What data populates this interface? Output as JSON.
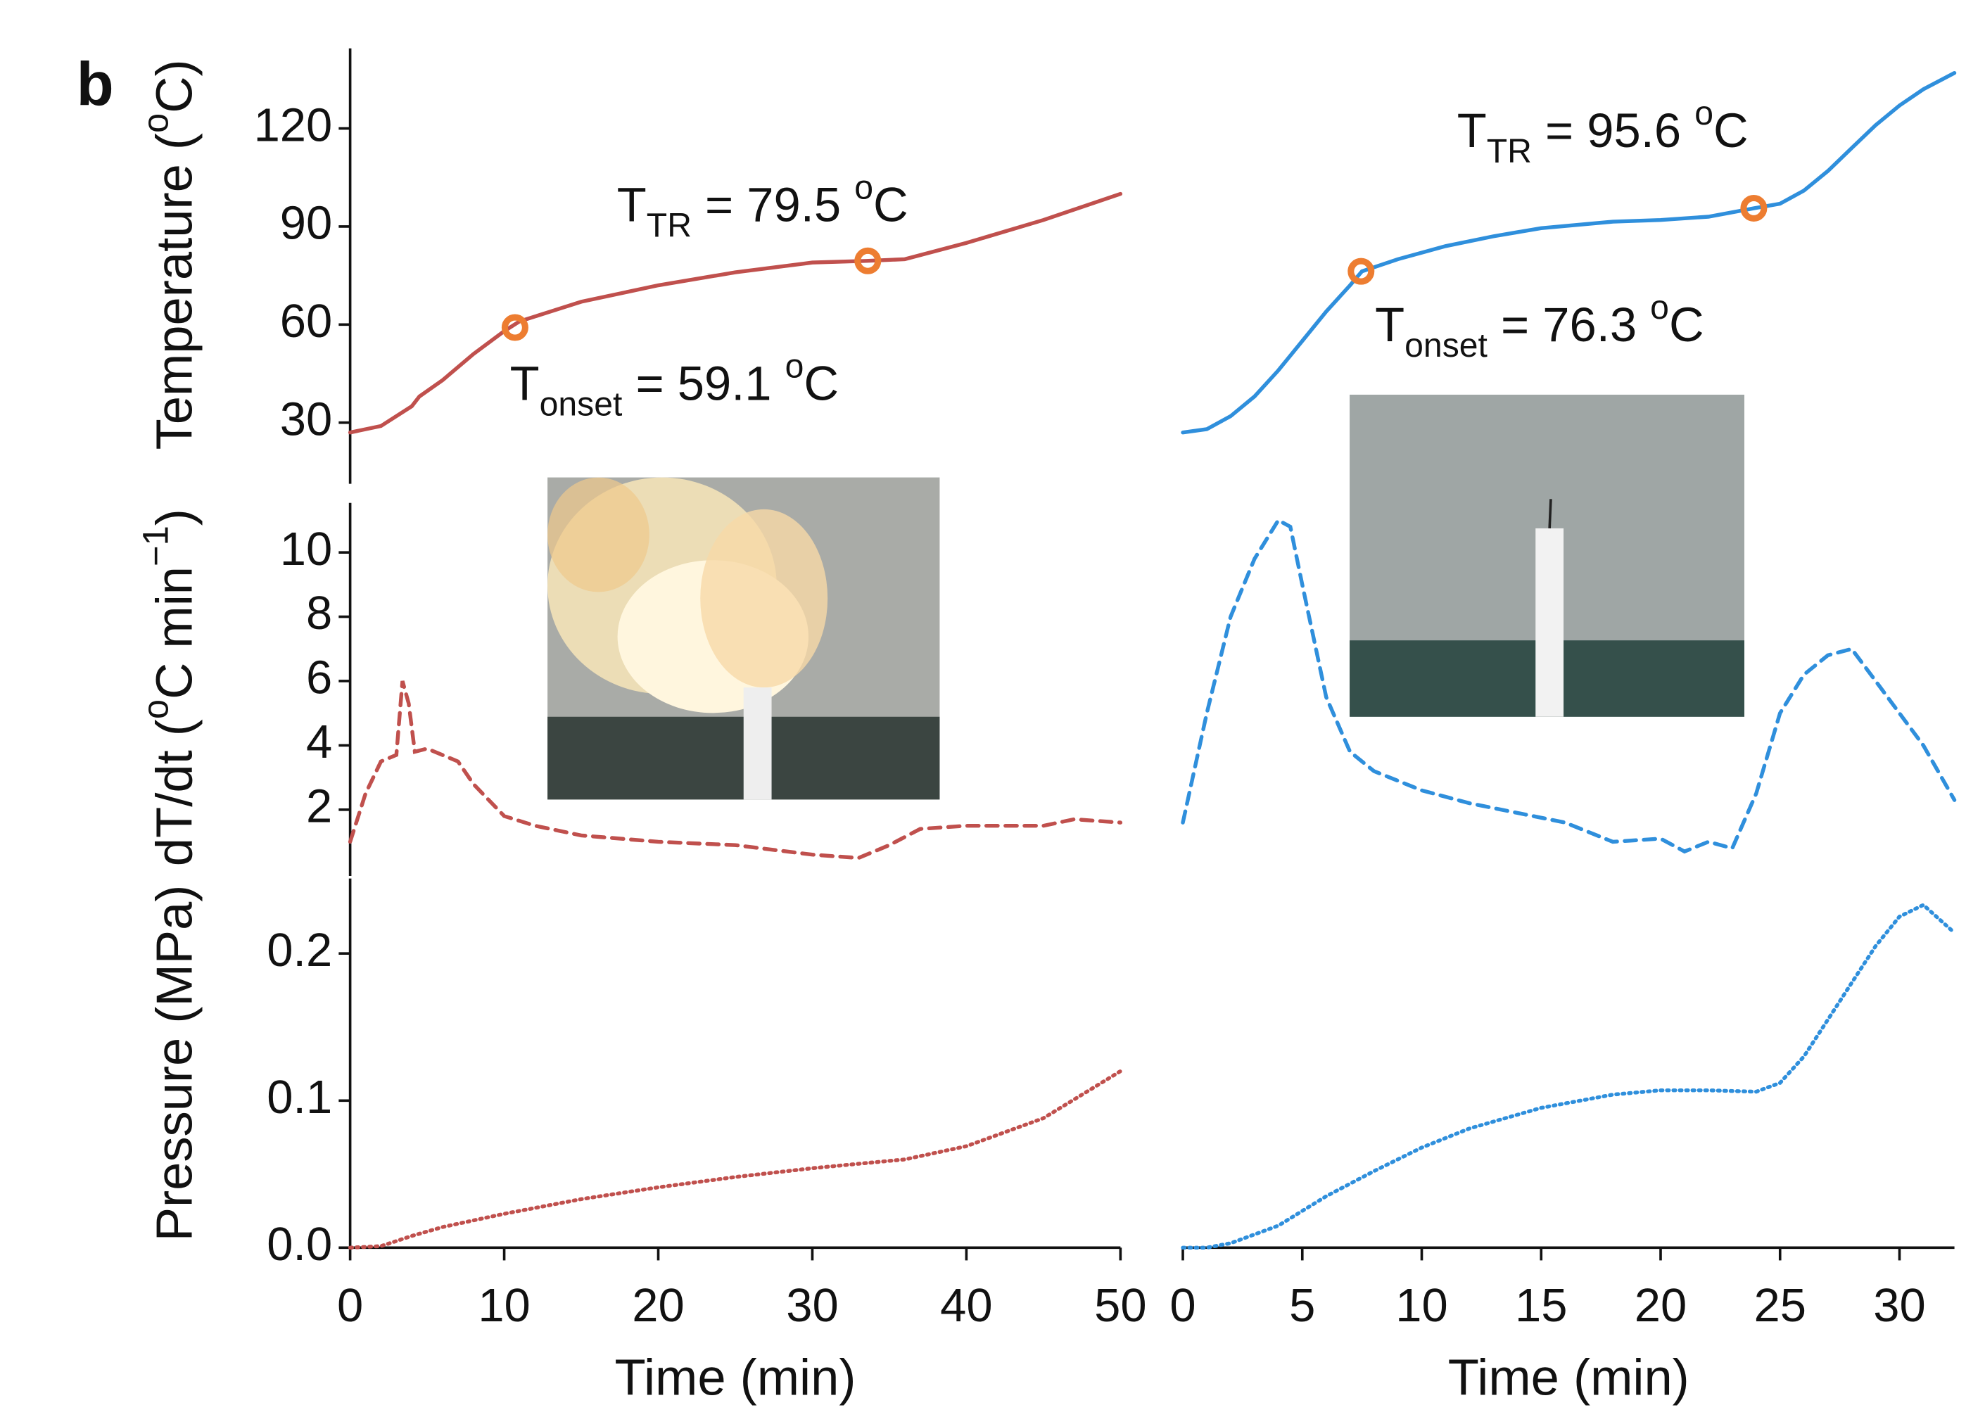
{
  "panel_label": "b",
  "chart_data": [
    {
      "type": "line",
      "ylabel": [
        {
          "text": "Temperature ("
        },
        {
          "text": "o",
          "shift": "super"
        },
        {
          "text": "C)"
        }
      ],
      "ylim": [
        11.3,
        144.5
      ],
      "yticks": [
        30,
        60,
        90,
        120
      ],
      "xlim": [
        0,
        50
      ],
      "x": [
        0,
        2,
        4,
        4.5,
        6,
        8,
        10,
        11,
        13,
        15,
        20,
        25,
        30,
        33.5,
        36,
        40,
        45,
        50
      ],
      "series": [
        {
          "color": "#c0504d",
          "linestyle": "solid",
          "values": [
            27,
            29,
            35,
            38,
            43,
            51,
            58,
            61,
            64,
            67,
            72,
            76,
            79,
            79.5,
            80,
            85,
            92,
            100
          ]
        }
      ],
      "marker_color": "#ed7d31",
      "annotations": [
        {
          "x": 10.7,
          "y": 59.1,
          "parts": [
            {
              "text": "T"
            },
            {
              "text": "onset",
              "shift": "sub"
            },
            {
              "text": " = 59.1 "
            },
            {
              "text": "o",
              "shift": "super"
            },
            {
              "text": "C"
            }
          ]
        },
        {
          "x": 33.6,
          "y": 79.5,
          "parts": [
            {
              "text": "T"
            },
            {
              "text": "TR",
              "shift": "sub"
            },
            {
              "text": " = 79.5 "
            },
            {
              "text": "o",
              "shift": "super"
            },
            {
              "text": "C"
            }
          ]
        }
      ]
    },
    {
      "type": "line",
      "ylabel": [
        {
          "text": "dT/dt ("
        },
        {
          "text": "o",
          "shift": "super"
        },
        {
          "text": "C min"
        },
        {
          "text": "−1",
          "shift": "super"
        },
        {
          "text": ")"
        }
      ],
      "ylim": [
        -0.06,
        11.54
      ],
      "yticks": [
        2,
        4,
        6,
        8,
        10
      ],
      "xlim": [
        0,
        50
      ],
      "x": [
        0,
        1,
        2,
        3,
        3.4,
        3.8,
        4.2,
        5,
        7,
        8,
        10,
        12,
        15,
        20,
        25,
        30,
        33,
        35,
        37,
        40,
        45,
        47,
        50
      ],
      "series": [
        {
          "color": "#c0504d",
          "linestyle": "dashed",
          "values": [
            1.0,
            2.5,
            3.5,
            3.7,
            6.0,
            5.3,
            3.8,
            3.9,
            3.5,
            2.8,
            1.8,
            1.5,
            1.2,
            1.0,
            0.9,
            0.6,
            0.5,
            0.9,
            1.4,
            1.5,
            1.5,
            1.7,
            1.6
          ]
        }
      ]
    },
    {
      "type": "line",
      "ylabel": [
        {
          "text": "Pressure (MPa)"
        }
      ],
      "ylim": [
        0,
        0.251
      ],
      "yticks": [
        {
          "value": 0,
          "label": "0.0"
        },
        {
          "value": 0.1,
          "label": "0.1"
        },
        {
          "value": 0.2,
          "label": "0.2"
        }
      ],
      "xlim": [
        0,
        50
      ],
      "xticks": [
        0,
        10,
        20,
        30,
        40,
        50
      ],
      "xlabel": "Time (min)",
      "x": [
        0,
        2,
        4,
        6,
        10,
        15,
        20,
        25,
        30,
        33,
        36,
        40,
        45,
        50
      ],
      "series": [
        {
          "color": "#c0504d",
          "linestyle": "dotted",
          "values": [
            0,
            0.001,
            0.008,
            0.014,
            0.023,
            0.033,
            0.041,
            0.048,
            0.054,
            0.057,
            0.06,
            0.069,
            0.088,
            0.12
          ]
        }
      ]
    },
    {
      "type": "line",
      "ylim": [
        11.3,
        144.5
      ],
      "xlim": [
        0,
        32.3
      ],
      "x": [
        0,
        1,
        2,
        3,
        4,
        5,
        6,
        7,
        7.5,
        9,
        11,
        13,
        15,
        18,
        20,
        22,
        23.9,
        25,
        26,
        27,
        28,
        29,
        30,
        31,
        32.3
      ],
      "series": [
        {
          "color": "#2f8fdc",
          "linestyle": "solid",
          "values": [
            27,
            28,
            32,
            38,
            46,
            55,
            64,
            72,
            76.3,
            80,
            84,
            87,
            89.5,
            91.5,
            92,
            93,
            95.6,
            97,
            101,
            107,
            114,
            121,
            127,
            132,
            137
          ]
        }
      ],
      "marker_color": "#ed7d31",
      "annotations": [
        {
          "x": 7.46,
          "y": 76.3,
          "parts": [
            {
              "text": "T"
            },
            {
              "text": "onset",
              "shift": "sub"
            },
            {
              "text": " = 76.3 "
            },
            {
              "text": "o",
              "shift": "super"
            },
            {
              "text": "C"
            }
          ]
        },
        {
          "x": 23.9,
          "y": 95.6,
          "parts": [
            {
              "text": "T"
            },
            {
              "text": "TR",
              "shift": "sub"
            },
            {
              "text": " = 95.6 "
            },
            {
              "text": "o",
              "shift": "super"
            },
            {
              "text": "C"
            }
          ]
        }
      ]
    },
    {
      "type": "line",
      "ylim": [
        -0.06,
        11.54
      ],
      "xlim": [
        0,
        32.3
      ],
      "x": [
        0,
        1,
        2,
        3,
        4,
        4.5,
        5,
        6,
        7,
        8,
        10,
        12,
        14,
        16,
        18,
        20,
        21,
        22,
        23,
        24,
        25,
        26,
        27,
        28,
        29,
        30,
        31,
        32.3
      ],
      "series": [
        {
          "color": "#2f8fdc",
          "linestyle": "dashed",
          "values": [
            1.6,
            5,
            8,
            9.8,
            11.0,
            10.8,
            9,
            5.5,
            3.8,
            3.2,
            2.6,
            2.2,
            1.9,
            1.6,
            1.0,
            1.1,
            0.7,
            1.0,
            0.8,
            2.5,
            5,
            6.2,
            6.8,
            7.0,
            6.0,
            5.0,
            4.0,
            2.3
          ]
        }
      ]
    },
    {
      "type": "line",
      "ylim": [
        0,
        0.251
      ],
      "xlim": [
        0,
        32.3
      ],
      "xticks": [
        0,
        5,
        10,
        15,
        20,
        25,
        30
      ],
      "xlabel": "Time (min)",
      "x": [
        0,
        1,
        2,
        4,
        6,
        8,
        10,
        12,
        15,
        18,
        20,
        22,
        24,
        25,
        26,
        27,
        28,
        29,
        30,
        31,
        32.3
      ],
      "series": [
        {
          "color": "#2f8fdc",
          "linestyle": "dotted",
          "values": [
            0,
            0,
            0.003,
            0.015,
            0.035,
            0.052,
            0.068,
            0.081,
            0.095,
            0.104,
            0.107,
            0.107,
            0.106,
            0.112,
            0.13,
            0.155,
            0.18,
            0.205,
            0.225,
            0.233,
            0.214
          ]
        }
      ]
    }
  ]
}
